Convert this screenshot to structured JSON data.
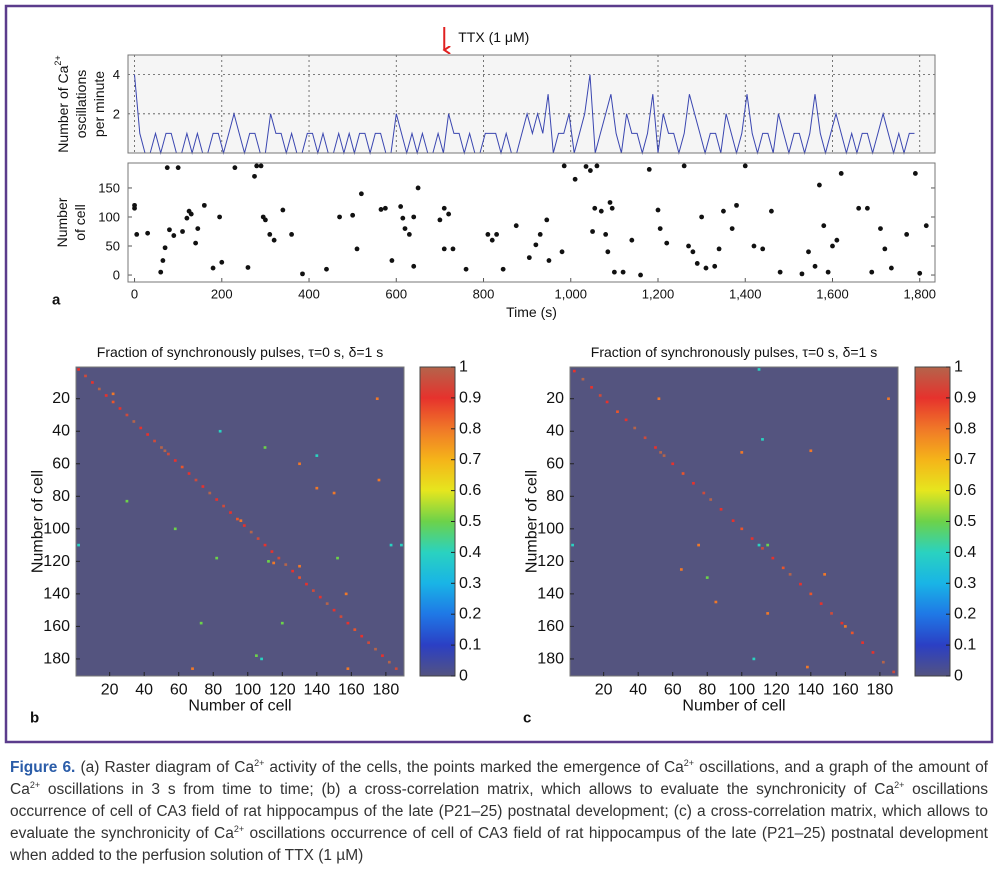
{
  "chart_data": [
    {
      "type": "line",
      "color": "#3a46b0",
      "grid": true,
      "xticklabels": false,
      "ylabel": [
        "Number of Ca",
        "2+",
        "oscillations",
        "per minute"
      ],
      "annotation": {
        "text": "TTX (1 μM)",
        "x": 710,
        "color": "#e02020"
      },
      "xlim": [
        -15,
        1835
      ],
      "ylim": [
        0,
        5
      ],
      "yticks": [
        2,
        4
      ],
      "xticks": [
        0,
        200,
        400,
        600,
        800,
        1000,
        1200,
        1400,
        1600,
        1800
      ],
      "x": [
        0,
        12,
        24,
        36,
        48,
        60,
        72,
        84,
        96,
        108,
        120,
        132,
        144,
        156,
        168,
        180,
        192,
        204,
        216,
        228,
        240,
        252,
        264,
        276,
        288,
        300,
        312,
        324,
        336,
        348,
        360,
        372,
        384,
        396,
        408,
        420,
        432,
        444,
        456,
        468,
        480,
        492,
        504,
        516,
        528,
        540,
        552,
        564,
        576,
        588,
        600,
        612,
        624,
        636,
        648,
        660,
        672,
        684,
        696,
        708,
        720,
        732,
        744,
        756,
        768,
        780,
        792,
        804,
        816,
        828,
        840,
        852,
        864,
        876,
        888,
        900,
        912,
        924,
        936,
        948,
        960,
        972,
        984,
        996,
        1008,
        1020,
        1032,
        1044,
        1056,
        1068,
        1080,
        1092,
        1104,
        1116,
        1128,
        1140,
        1152,
        1164,
        1176,
        1188,
        1200,
        1212,
        1224,
        1236,
        1248,
        1260,
        1272,
        1284,
        1296,
        1308,
        1320,
        1332,
        1344,
        1356,
        1368,
        1380,
        1392,
        1404,
        1416,
        1428,
        1440,
        1452,
        1464,
        1476,
        1488,
        1500,
        1512,
        1524,
        1536,
        1548,
        1560,
        1572,
        1584,
        1596,
        1608,
        1620,
        1632,
        1644,
        1656,
        1668,
        1680,
        1692,
        1704,
        1716,
        1728,
        1740,
        1752,
        1764,
        1776,
        1788
      ],
      "values": [
        4,
        1,
        0,
        0,
        1,
        0,
        1,
        1,
        0,
        0,
        1,
        0,
        1,
        0,
        0,
        1,
        1,
        0,
        1,
        2,
        1,
        0,
        1,
        1,
        0,
        0,
        2,
        1,
        1,
        0,
        1,
        0,
        0,
        1,
        1,
        0,
        1,
        0,
        0,
        1,
        0,
        1,
        0,
        1,
        1,
        0,
        1,
        1,
        0,
        0,
        2,
        1,
        0,
        1,
        0,
        1,
        0,
        0,
        1,
        0,
        2,
        1,
        1,
        0,
        1,
        0,
        0,
        1,
        1,
        1,
        0,
        1,
        0,
        0,
        1,
        2,
        1,
        2,
        1,
        3,
        0,
        1,
        1,
        2,
        0,
        1,
        2,
        4,
        0,
        1,
        2,
        3,
        1,
        0,
        2,
        1,
        1,
        0,
        1,
        3,
        0,
        2,
        1,
        1,
        0,
        1,
        3,
        2,
        1,
        0,
        1,
        1,
        0,
        2,
        1,
        0,
        1,
        3,
        1,
        0,
        1,
        1,
        0,
        2,
        1,
        0,
        1,
        1,
        0,
        1,
        3,
        1,
        0,
        1,
        2,
        1,
        0,
        1,
        0,
        1,
        1,
        0,
        1,
        2,
        1,
        0,
        1,
        0,
        1,
        1
      ]
    },
    {
      "type": "scatter",
      "color": "#111111",
      "panel_label": "a",
      "xlabel": "Time (s)",
      "ylabel": [
        "Number",
        "of cell"
      ],
      "xlim": [
        -15,
        1835
      ],
      "ylim": [
        -12,
        193
      ],
      "yticks": [
        0,
        50,
        100,
        150
      ],
      "xticks": [
        0,
        200,
        400,
        600,
        800,
        {
          "value": 1000,
          "label": "1,000"
        },
        {
          "value": 1200,
          "label": "1,200"
        },
        {
          "value": 1400,
          "label": "1,400"
        },
        {
          "value": 1600,
          "label": "1,600"
        },
        {
          "value": 1800,
          "label": "1,800"
        }
      ],
      "x": [
        0,
        0,
        5,
        30,
        60,
        65,
        70,
        75,
        80,
        90,
        100,
        110,
        120,
        125,
        130,
        140,
        145,
        160,
        180,
        195,
        200,
        230,
        260,
        275,
        280,
        290,
        295,
        300,
        310,
        320,
        340,
        360,
        385,
        440,
        470,
        500,
        510,
        520,
        565,
        575,
        590,
        610,
        615,
        620,
        630,
        640,
        650,
        640,
        700,
        710,
        720,
        710,
        730,
        760,
        810,
        820,
        830,
        845,
        875,
        905,
        920,
        930,
        945,
        950,
        980,
        985,
        1010,
        1035,
        1045,
        1060,
        1050,
        1055,
        1070,
        1080,
        1090,
        1095,
        1100,
        1085,
        1120,
        1140,
        1160,
        1180,
        1200,
        1205,
        1220,
        1260,
        1270,
        1280,
        1290,
        1300,
        1310,
        1330,
        1340,
        1350,
        1370,
        1380,
        1400,
        1420,
        1440,
        1460,
        1480,
        1530,
        1545,
        1560,
        1570,
        1580,
        1590,
        1600,
        1610,
        1620,
        1660,
        1680,
        1690,
        1710,
        1720,
        1735,
        1770,
        1790,
        1800,
        1815
      ],
      "y": [
        120,
        115,
        70,
        72,
        5,
        25,
        47,
        185,
        78,
        68,
        185,
        75,
        98,
        110,
        105,
        55,
        80,
        120,
        12,
        100,
        22,
        185,
        13,
        170,
        188,
        188,
        100,
        95,
        70,
        60,
        112,
        70,
        2,
        10,
        100,
        103,
        45,
        140,
        113,
        115,
        25,
        118,
        98,
        80,
        70,
        100,
        150,
        15,
        95,
        115,
        105,
        45,
        45,
        10,
        70,
        60,
        70,
        10,
        85,
        30,
        52,
        70,
        95,
        25,
        40,
        188,
        165,
        187,
        180,
        188,
        75,
        115,
        110,
        70,
        125,
        115,
        5,
        40,
        5,
        60,
        0,
        182,
        112,
        80,
        55,
        188,
        50,
        40,
        20,
        100,
        12,
        15,
        45,
        110,
        80,
        120,
        188,
        50,
        45,
        110,
        5,
        2,
        40,
        15,
        155,
        85,
        5,
        50,
        60,
        175,
        115,
        115,
        5,
        80,
        45,
        12,
        70,
        175,
        3,
        85
      ]
    },
    {
      "type": "heatmap",
      "panel_label": "b",
      "title": "Fraction of synchronously pulses, τ=0 s, δ=1 s",
      "xlabel": "Number of cell",
      "ylabel": "Number of cell",
      "facecolor": "#54547f",
      "yinvert": true,
      "xlim": [
        0.5,
        190.5
      ],
      "ylim": [
        0.5,
        190.5
      ],
      "xticks": [
        20,
        40,
        60,
        80,
        100,
        120,
        140,
        160,
        180
      ],
      "yticks": [
        20,
        40,
        60,
        80,
        100,
        120,
        140,
        160,
        180
      ],
      "colormap": [
        "#535381",
        "#2b3fc4",
        "#1f78e6",
        "#19b4e6",
        "#2ad2c0",
        "#6cd24a",
        "#e6e61e",
        "#f5b419",
        "#f07828",
        "#e6322d",
        "#b4644b"
      ],
      "clim": [
        0,
        1
      ],
      "cticks": [
        0,
        0.1,
        0.2,
        0.3,
        0.4,
        0.5,
        0.6,
        0.7,
        0.8,
        0.9,
        1
      ],
      "x": [
        2,
        6,
        10,
        14,
        18,
        22,
        26,
        30,
        34,
        38,
        42,
        46,
        50,
        52,
        54,
        58,
        62,
        66,
        70,
        74,
        78,
        82,
        86,
        90,
        94,
        98,
        102,
        106,
        110,
        114,
        118,
        122,
        126,
        130,
        134,
        138,
        142,
        146,
        150,
        154,
        158,
        162,
        166,
        170,
        174,
        178,
        182,
        186,
        22,
        84,
        175,
        110,
        140,
        130,
        176,
        140,
        150,
        30,
        96,
        58,
        183,
        189,
        2,
        82,
        152,
        115,
        130,
        157,
        73,
        120,
        105,
        108,
        68,
        158,
        112
      ],
      "y": [
        2,
        6,
        10,
        14,
        18,
        22,
        26,
        30,
        34,
        38,
        42,
        46,
        50,
        52,
        54,
        58,
        62,
        66,
        70,
        74,
        78,
        82,
        86,
        90,
        94,
        98,
        102,
        106,
        110,
        114,
        118,
        122,
        126,
        130,
        134,
        138,
        142,
        146,
        150,
        154,
        158,
        162,
        166,
        170,
        174,
        178,
        182,
        186,
        17,
        40,
        20,
        50,
        55,
        60,
        70,
        75,
        78,
        83,
        95,
        100,
        110,
        110,
        110,
        118,
        118,
        121,
        123,
        140,
        158,
        158,
        178,
        180,
        186,
        186,
        120
      ],
      "values": [
        0.9,
        0.95,
        0.9,
        1,
        0.9,
        0.85,
        0.9,
        0.95,
        1,
        0.9,
        0.9,
        0.95,
        1,
        1,
        0.95,
        0.9,
        0.85,
        0.9,
        0.95,
        0.9,
        1,
        0.9,
        0.95,
        0.9,
        0.85,
        0.9,
        1,
        0.95,
        0.9,
        0.9,
        0.95,
        1,
        0.9,
        0.85,
        0.9,
        0.95,
        0.9,
        1,
        0.9,
        0.95,
        0.9,
        0.85,
        0.9,
        0.95,
        1,
        0.9,
        1,
        0.95,
        0.8,
        0.4,
        0.8,
        0.5,
        0.4,
        0.8,
        0.8,
        0.8,
        0.8,
        0.5,
        0.8,
        0.5,
        0.4,
        0.4,
        0.4,
        0.5,
        0.5,
        0.8,
        0.8,
        0.8,
        0.5,
        0.5,
        0.5,
        0.4,
        0.8,
        0.8,
        0.5
      ]
    },
    {
      "type": "heatmap",
      "panel_label": "c",
      "title": "Fraction of synchronously pulses, τ=0 s, δ=1 s",
      "xlabel": "Number of cell",
      "ylabel": "Number of cell",
      "facecolor": "#54547f",
      "yinvert": true,
      "xlim": [
        0.5,
        190.5
      ],
      "ylim": [
        0.5,
        190.5
      ],
      "xticks": [
        20,
        40,
        60,
        80,
        100,
        120,
        140,
        160,
        180
      ],
      "yticks": [
        20,
        40,
        60,
        80,
        100,
        120,
        140,
        160,
        180
      ],
      "colormap": [
        "#535381",
        "#2b3fc4",
        "#1f78e6",
        "#19b4e6",
        "#2ad2c0",
        "#6cd24a",
        "#e6e61e",
        "#f5b419",
        "#f07828",
        "#e6322d",
        "#b4644b"
      ],
      "clim": [
        0,
        1
      ],
      "cticks": [
        0,
        0.1,
        0.2,
        0.3,
        0.4,
        0.5,
        0.6,
        0.7,
        0.8,
        0.9,
        1
      ],
      "x": [
        3,
        8,
        13,
        18,
        22,
        28,
        33,
        38,
        44,
        50,
        53,
        55,
        60,
        66,
        72,
        78,
        82,
        88,
        95,
        100,
        106,
        112,
        118,
        124,
        128,
        134,
        140,
        146,
        152,
        158,
        164,
        170,
        176,
        182,
        188,
        52,
        110,
        112,
        100,
        140,
        2,
        110,
        115,
        148,
        65,
        80,
        85,
        115,
        75,
        160,
        107,
        138,
        185
      ],
      "y": [
        3,
        8,
        13,
        18,
        22,
        28,
        33,
        38,
        44,
        50,
        53,
        55,
        60,
        66,
        72,
        78,
        82,
        88,
        95,
        100,
        106,
        112,
        118,
        124,
        128,
        134,
        140,
        146,
        152,
        158,
        164,
        170,
        176,
        182,
        188,
        20,
        2,
        45,
        53,
        52,
        110,
        110,
        110,
        128,
        125,
        130,
        145,
        152,
        110,
        160,
        180,
        185,
        20
      ],
      "values": [
        0.9,
        1,
        0.9,
        0.95,
        0.9,
        0.85,
        0.9,
        1,
        0.95,
        0.9,
        1,
        1,
        0.9,
        0.85,
        0.9,
        0.95,
        1,
        0.9,
        0.9,
        0.85,
        0.9,
        0.95,
        0.9,
        0.85,
        1,
        0.9,
        0.85,
        0.9,
        0.95,
        0.9,
        0.85,
        0.9,
        0.9,
        1,
        0.95,
        0.8,
        0.4,
        0.4,
        0.8,
        0.8,
        0.4,
        0.4,
        0.5,
        0.8,
        0.8,
        0.5,
        0.8,
        0.8,
        0.8,
        0.8,
        0.4,
        0.8,
        0.8
      ]
    }
  ],
  "caption": {
    "label": "Figure 6.",
    "runs": [
      " (a) Raster diagram of Ca",
      "2+",
      " activity of the cells, the points marked the emergence of Ca",
      "2+",
      " oscillations, and a graph of the amount of Ca",
      "2+",
      " oscillations in 3 s from time to time; (b) a cross-correlation matrix, which allows to evaluate the synchronicity of Ca",
      "2+",
      " oscillations occurrence of cell of CA3 field of rat hippocampus of the late (P21–25) postnatal development; (c) a cross-correlation matrix, which allows to evaluate the synchronicity of Ca",
      "2+",
      " oscillations occurrence of cell of CA3 field of rat hippocampus of the late (P21–25) postnatal development when added to the perfusion solution of TTX (1 µM)"
    ]
  }
}
